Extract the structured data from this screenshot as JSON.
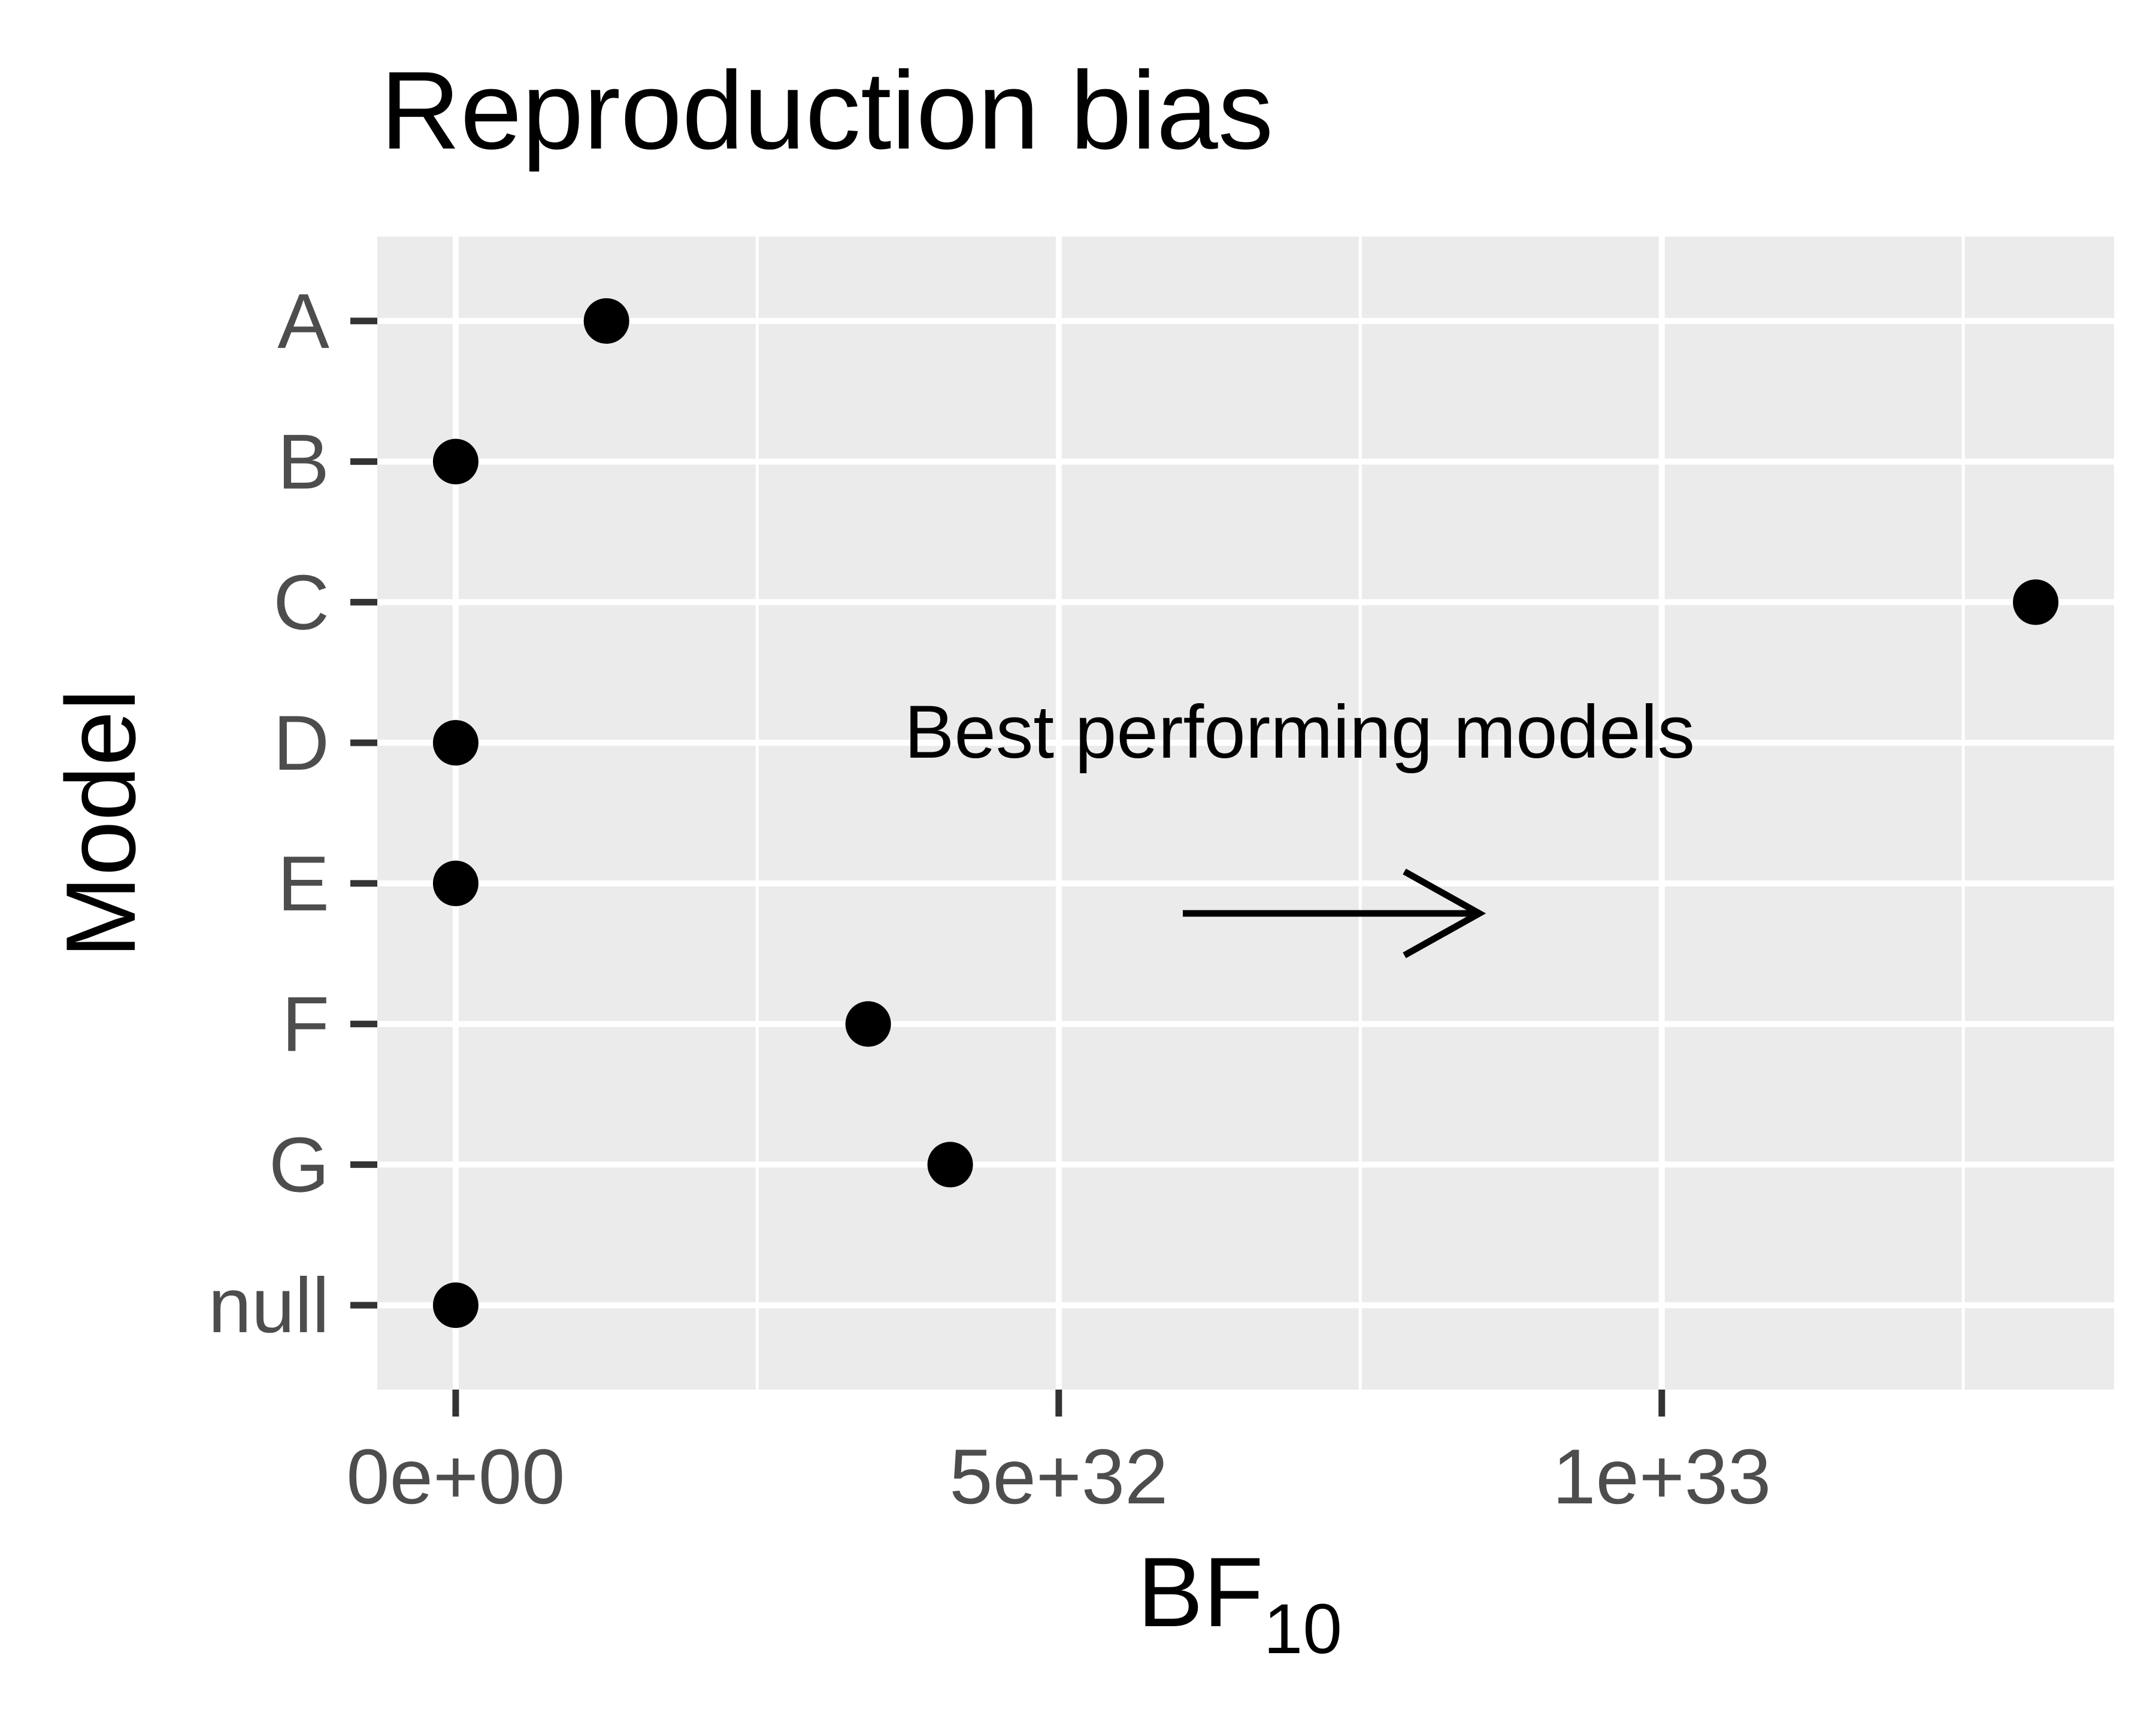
{
  "chart_data": {
    "type": "scatter",
    "title": "Reproduction bias",
    "xlabel_main": "BF",
    "xlabel_sub": "10",
    "ylabel": "Model",
    "categories": [
      "A",
      "B",
      "C",
      "D",
      "E",
      "F",
      "G",
      "null"
    ],
    "x_ticks": [
      {
        "value": 0,
        "label": "0e+00"
      },
      {
        "value": 5e+32,
        "label": "5e+32"
      },
      {
        "value": 1e+33,
        "label": "1e+33"
      }
    ],
    "xlim": [
      -6.5e+31,
      1.375e+33
    ],
    "points": [
      {
        "model": "A",
        "value": 1.25e+32
      },
      {
        "model": "B",
        "value": 0
      },
      {
        "model": "C",
        "value": 1.31e+33
      },
      {
        "model": "D",
        "value": 0
      },
      {
        "model": "E",
        "value": 0
      },
      {
        "model": "F",
        "value": 3.42e+32
      },
      {
        "model": "G",
        "value": 4.1e+32
      },
      {
        "model": "null",
        "value": 0
      }
    ],
    "annotation": "Best performing models",
    "annotation_arrow_direction": "right",
    "grid": true,
    "panel_background": "#ebebeb",
    "grid_color": "#ffffff",
    "point_color": "#000000",
    "legend": "none"
  }
}
